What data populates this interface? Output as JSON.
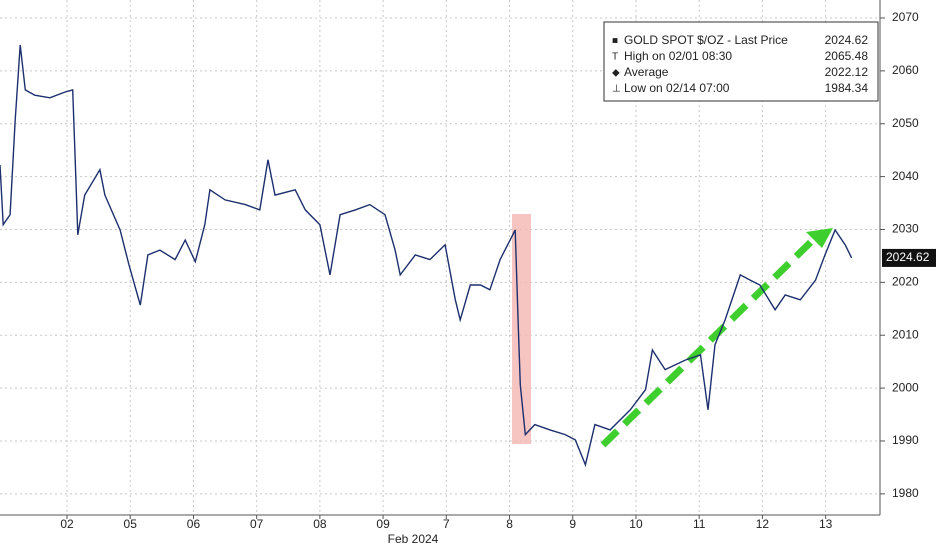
{
  "chart_data": {
    "type": "line",
    "x": [
      -0.06,
      -0.01,
      0.1,
      0.18,
      0.26,
      0.34,
      0.49,
      0.73,
      0.97,
      1.09,
      1.13,
      1.17,
      1.28,
      1.52,
      1.6,
      1.84,
      1.98,
      2.16,
      2.28,
      2.47,
      2.71,
      2.87,
      3.03,
      3.18,
      3.26,
      3.5,
      3.82,
      4.05,
      4.18,
      4.29,
      4.61,
      4.77,
      5.0,
      5.16,
      5.32,
      5.56,
      5.79,
      6.03,
      6.19,
      6.27,
      6.51,
      6.74,
      6.98,
      7.14,
      7.22,
      7.38,
      7.54,
      7.69,
      7.85,
      8.09,
      8.14,
      8.17,
      8.25,
      8.4,
      8.64,
      8.88,
      9.04,
      9.2,
      9.35,
      9.59,
      9.91,
      10.15,
      10.26,
      10.46,
      10.78,
      11.02,
      11.14,
      11.25,
      11.41,
      11.65,
      11.81,
      11.96,
      12.2,
      12.36,
      12.6,
      12.84,
      12.99,
      13.15,
      13.31,
      13.41
    ],
    "series": [
      {
        "name": "GOLD SPOT $/OZ - Last Price",
        "color": "#1c2f6e",
        "values": [
          2042.2,
          2030.9,
          2032.8,
          2050.7,
          2064.9,
          2056.4,
          2055.4,
          2054.9,
          2056.0,
          2056.4,
          2043.2,
          2029.0,
          2036.5,
          2041.3,
          2036.5,
          2029.9,
          2023.3,
          2015.7,
          2025.2,
          2026.1,
          2024.3,
          2028.0,
          2023.9,
          2030.9,
          2037.5,
          2035.6,
          2034.7,
          2033.7,
          2043.2,
          2036.5,
          2037.5,
          2033.7,
          2030.9,
          2021.4,
          2032.8,
          2033.7,
          2034.7,
          2032.8,
          2026.1,
          2021.4,
          2025.2,
          2024.3,
          2027.1,
          2016.8,
          2012.9,
          2019.5,
          2019.5,
          2018.6,
          2024.3,
          2029.9,
          2011.0,
          2000.6,
          1991.2,
          1993.1,
          1992.1,
          1991.2,
          1990.2,
          1985.5,
          1993.1,
          1992.1,
          1995.9,
          1999.7,
          2007.2,
          2003.5,
          2005.3,
          2006.3,
          1995.9,
          2008.2,
          2012.9,
          2021.4,
          2020.4,
          2019.5,
          2014.8,
          2017.6,
          2016.7,
          2020.4,
          2025.2,
          2029.9,
          2027.1,
          2024.62
        ]
      }
    ],
    "legend": [
      {
        "label": "GOLD SPOT $/OZ - Last Price",
        "value": 2024.62
      },
      {
        "label": "High on 02/01 08:30",
        "value": 2065.48
      },
      {
        "label": "Average",
        "value": 2022.12
      },
      {
        "label": "Low on 02/14 07:00",
        "value": 1984.34
      }
    ],
    "xlabel": "Feb 2024",
    "xlim": [
      -0.06,
      13.86
    ],
    "xticks": [
      {
        "value": 1,
        "label": "02"
      },
      {
        "value": 2,
        "label": "05"
      },
      {
        "value": 3,
        "label": "06"
      },
      {
        "value": 4,
        "label": "07"
      },
      {
        "value": 5,
        "label": "08"
      },
      {
        "value": 6,
        "label": "09"
      },
      7,
      8,
      9,
      10,
      11,
      12,
      13
    ],
    "ylim": [
      1976.0,
      2073.4
    ],
    "yticks": [
      1980,
      1990,
      2000,
      2010,
      2020,
      2030,
      2040,
      2050,
      2060,
      2070
    ],
    "grid": true
  }
}
